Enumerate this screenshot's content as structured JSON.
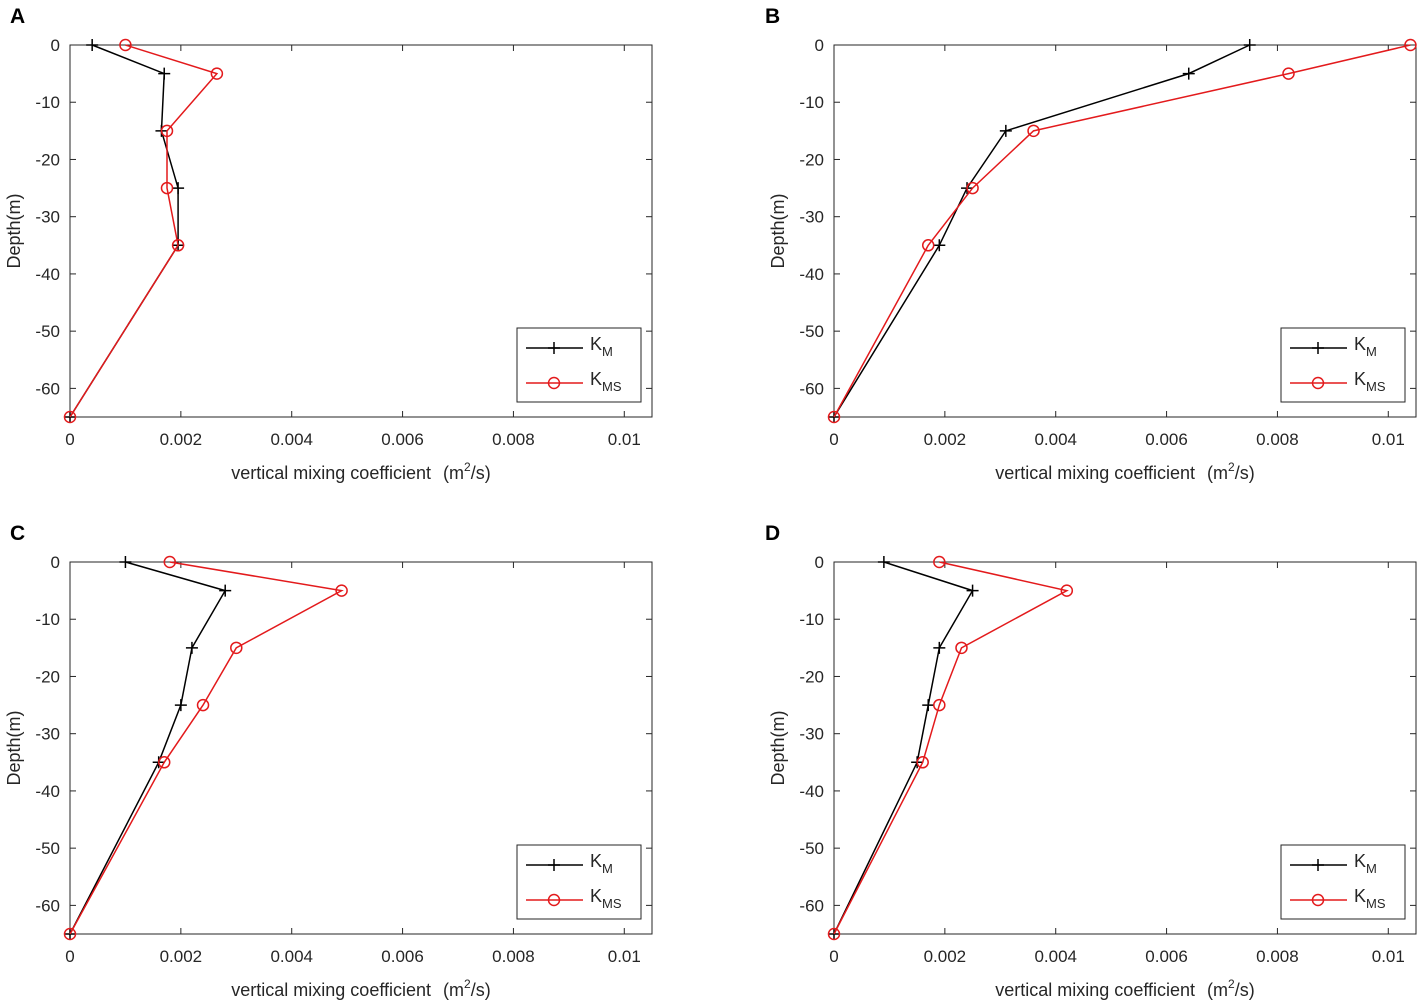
{
  "colors": {
    "km": "#000000",
    "kms": "#e31a1c",
    "axis": "#262626"
  },
  "chart_data": [
    {
      "panel": "A",
      "type": "line",
      "xlabel": "vertical mixing coefficient",
      "xunit": {
        "open": "(m",
        "sup": "2",
        "close": "/s)"
      },
      "ylabel": "Depth(m)",
      "xlim": [
        0,
        0.0105
      ],
      "ylim": [
        -65,
        0
      ],
      "xticks": [
        0,
        0.002,
        0.004,
        0.006,
        0.008,
        0.01
      ],
      "xtick_labels": [
        "0",
        "0.002",
        "0.004",
        "0.006",
        "0.008",
        "0.01"
      ],
      "yticks": [
        0,
        -10,
        -20,
        -30,
        -40,
        -50,
        -60
      ],
      "ytick_labels": [
        "0",
        "-10",
        "-20",
        "-30",
        "-40",
        "-50",
        "-60"
      ],
      "legend_location": "bottom-right",
      "series": [
        {
          "name": "K",
          "sub": "M",
          "marker": "plus",
          "depth": [
            0,
            -5,
            -15,
            -25,
            -35,
            -65
          ],
          "values": [
            0.0004,
            0.0017,
            0.00165,
            0.00195,
            0.00195,
            0.0
          ]
        },
        {
          "name": "K",
          "sub": "MS",
          "marker": "circle",
          "depth": [
            0,
            -5,
            -15,
            -25,
            -35,
            -65
          ],
          "values": [
            0.001,
            0.00265,
            0.00175,
            0.00175,
            0.00195,
            0.0
          ]
        }
      ]
    },
    {
      "panel": "B",
      "type": "line",
      "xlabel": "vertical mixing coefficient",
      "xunit": {
        "open": "(m",
        "sup": "2",
        "close": "/s)"
      },
      "ylabel": "Depth(m)",
      "xlim": [
        0,
        0.0105
      ],
      "ylim": [
        -65,
        0
      ],
      "xticks": [
        0,
        0.002,
        0.004,
        0.006,
        0.008,
        0.01
      ],
      "xtick_labels": [
        "0",
        "0.002",
        "0.004",
        "0.006",
        "0.008",
        "0.01"
      ],
      "yticks": [
        0,
        -10,
        -20,
        -30,
        -40,
        -50,
        -60
      ],
      "ytick_labels": [
        "0",
        "-10",
        "-20",
        "-30",
        "-40",
        "-50",
        "-60"
      ],
      "legend_location": "bottom-right",
      "series": [
        {
          "name": "K",
          "sub": "M",
          "marker": "plus",
          "depth": [
            0,
            -5,
            -15,
            -25,
            -35,
            -65
          ],
          "values": [
            0.0075,
            0.0064,
            0.0031,
            0.0024,
            0.0019,
            0.0
          ]
        },
        {
          "name": "K",
          "sub": "MS",
          "marker": "circle",
          "depth": [
            0,
            -5,
            -15,
            -25,
            -35,
            -65
          ],
          "values": [
            0.0104,
            0.0082,
            0.0036,
            0.0025,
            0.0017,
            0.0
          ]
        }
      ]
    },
    {
      "panel": "C",
      "type": "line",
      "xlabel": "vertical mixing coefficient",
      "xunit": {
        "open": "(m",
        "sup": "2",
        "close": "/s)"
      },
      "ylabel": "Depth(m)",
      "xlim": [
        0,
        0.0105
      ],
      "ylim": [
        -65,
        0
      ],
      "xticks": [
        0,
        0.002,
        0.004,
        0.006,
        0.008,
        0.01
      ],
      "xtick_labels": [
        "0",
        "0.002",
        "0.004",
        "0.006",
        "0.008",
        "0.01"
      ],
      "yticks": [
        0,
        -10,
        -20,
        -30,
        -40,
        -50,
        -60
      ],
      "ytick_labels": [
        "0",
        "-10",
        "-20",
        "-30",
        "-40",
        "-50",
        "-60"
      ],
      "legend_location": "bottom-right",
      "series": [
        {
          "name": "K",
          "sub": "M",
          "marker": "plus",
          "depth": [
            0,
            -5,
            -15,
            -25,
            -35,
            -65
          ],
          "values": [
            0.001,
            0.0028,
            0.0022,
            0.002,
            0.0016,
            0.0
          ]
        },
        {
          "name": "K",
          "sub": "MS",
          "marker": "circle",
          "depth": [
            0,
            -5,
            -15,
            -25,
            -35,
            -65
          ],
          "values": [
            0.0018,
            0.0049,
            0.003,
            0.0024,
            0.0017,
            0.0
          ]
        }
      ]
    },
    {
      "panel": "D",
      "type": "line",
      "xlabel": "vertical mixing coefficient",
      "xunit": {
        "open": "(m",
        "sup": "2",
        "close": "/s)"
      },
      "ylabel": "Depth(m)",
      "xlim": [
        0,
        0.0105
      ],
      "ylim": [
        -65,
        0
      ],
      "xticks": [
        0,
        0.002,
        0.004,
        0.006,
        0.008,
        0.01
      ],
      "xtick_labels": [
        "0",
        "0.002",
        "0.004",
        "0.006",
        "0.008",
        "0.01"
      ],
      "yticks": [
        0,
        -10,
        -20,
        -30,
        -40,
        -50,
        -60
      ],
      "ytick_labels": [
        "0",
        "-10",
        "-20",
        "-30",
        "-40",
        "-50",
        "-60"
      ],
      "legend_location": "bottom-right",
      "series": [
        {
          "name": "K",
          "sub": "M",
          "marker": "plus",
          "depth": [
            0,
            -5,
            -15,
            -25,
            -35,
            -65
          ],
          "values": [
            0.0009,
            0.0025,
            0.0019,
            0.0017,
            0.0015,
            0.0
          ]
        },
        {
          "name": "K",
          "sub": "MS",
          "marker": "circle",
          "depth": [
            0,
            -5,
            -15,
            -25,
            -35,
            -65
          ],
          "values": [
            0.0019,
            0.0042,
            0.0023,
            0.0019,
            0.0016,
            0.0
          ]
        }
      ]
    }
  ]
}
